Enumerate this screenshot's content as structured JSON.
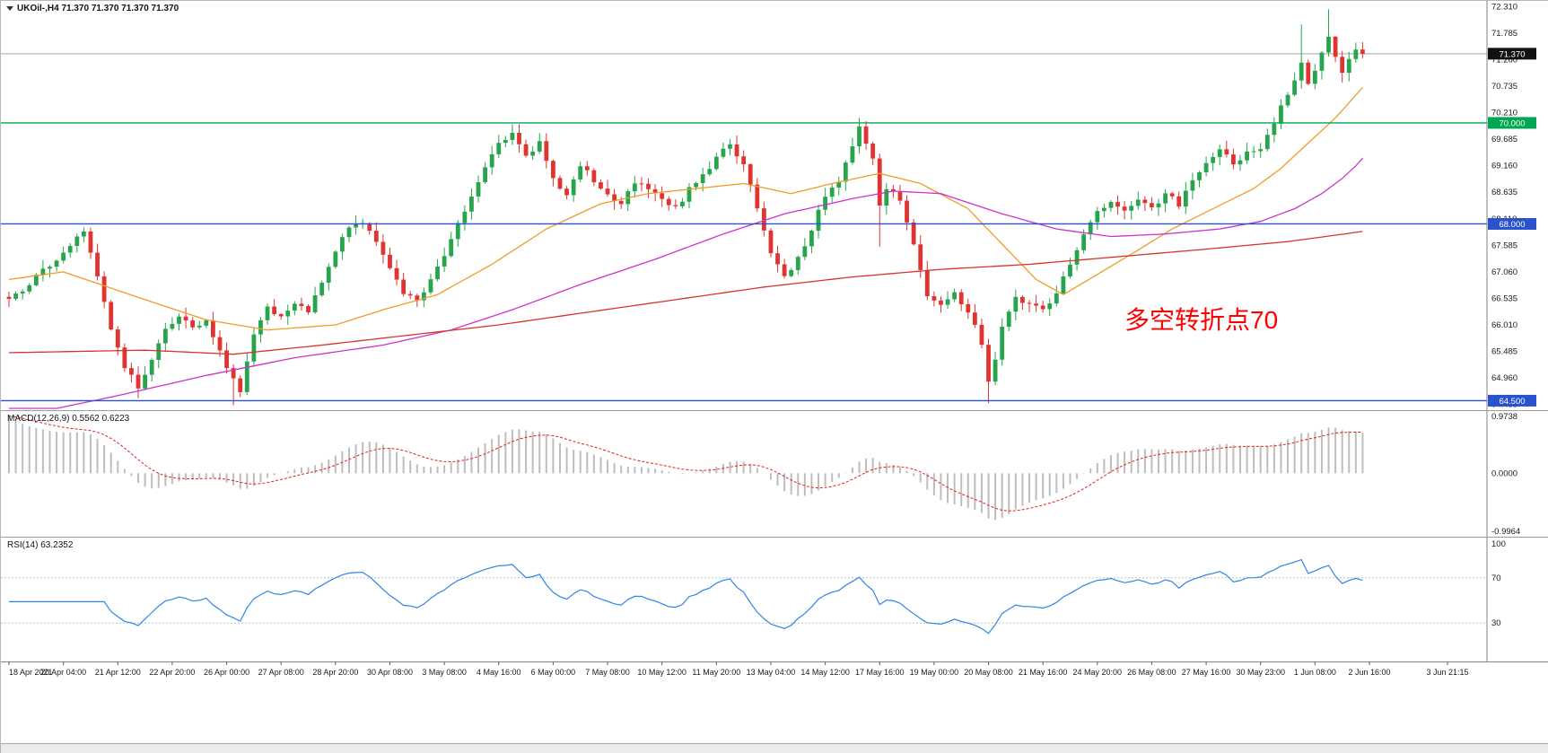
{
  "window": {
    "header": "UKOil-,H4 71.370 71.370 71.370 71.370",
    "annotation": "多空转折点70"
  },
  "chart_data": {
    "type": "candlestick",
    "symbol": "UKOil-",
    "timeframe": "H4",
    "quote": {
      "open": "71.370",
      "high": "71.370",
      "low": "71.370",
      "close": "71.370"
    },
    "price_axis": {
      "visible_min": 64.33,
      "visible_max": 72.38,
      "labels": [
        "72.310",
        "71.785",
        "71.260",
        "70.735",
        "70.210",
        "69.685",
        "69.160",
        "68.635",
        "68.110",
        "67.585",
        "67.060",
        "66.535",
        "66.010",
        "65.485",
        "64.960",
        "64.435"
      ]
    },
    "hlines": [
      {
        "price": 70.0,
        "label": "70.000",
        "color": "#00a651",
        "tag_bg": "#00a651"
      },
      {
        "price": 68.0,
        "label": "68.000",
        "color": "#2952cc",
        "tag_bg": "#2952cc"
      },
      {
        "price": 64.5,
        "label": "64.500",
        "color": "#2952cc",
        "tag_bg": "#2952cc"
      }
    ],
    "current_price": {
      "value": 71.37,
      "label": "71.370",
      "line_color": "#a8a8a8",
      "tag_bg": "#111111"
    },
    "time_labels": [
      "18 Apr 2021",
      "20 Apr 04:00",
      "21 Apr 12:00",
      "22 Apr 20:00",
      "26 Apr 00:00",
      "27 Apr 08:00",
      "28 Apr 20:00",
      "30 Apr 08:00",
      "3 May 08:00",
      "4 May 16:00",
      "6 May 00:00",
      "7 May 08:00",
      "10 May 12:00",
      "11 May 20:00",
      "13 May 04:00",
      "14 May 12:00",
      "17 May 16:00",
      "19 May 00:00",
      "20 May 08:00",
      "21 May 16:00",
      "24 May 20:00",
      "26 May 08:00",
      "27 May 16:00",
      "30 May 23:00",
      "1 Jun 08:00",
      "2 Jun 16:00",
      "3 Jun 21:15"
    ],
    "candles": {
      "count": 200,
      "up_color": "#26a54c",
      "down_color": "#df3430",
      "close_anchors": [
        [
          0,
          66.5
        ],
        [
          3,
          66.8
        ],
        [
          6,
          67.2
        ],
        [
          9,
          67.6
        ],
        [
          11,
          67.8
        ],
        [
          13,
          67.0
        ],
        [
          15,
          65.9
        ],
        [
          17,
          65.2
        ],
        [
          19,
          64.75
        ],
        [
          21,
          65.3
        ],
        [
          23,
          65.9
        ],
        [
          25,
          66.15
        ],
        [
          27,
          65.9
        ],
        [
          29,
          66.1
        ],
        [
          31,
          65.5
        ],
        [
          33,
          64.9
        ],
        [
          34,
          64.65
        ],
        [
          36,
          65.8
        ],
        [
          38,
          66.35
        ],
        [
          40,
          66.2
        ],
        [
          42,
          66.45
        ],
        [
          44,
          66.3
        ],
        [
          46,
          66.9
        ],
        [
          48,
          67.5
        ],
        [
          50,
          67.9
        ],
        [
          52,
          68.05
        ],
        [
          54,
          67.6
        ],
        [
          56,
          67.1
        ],
        [
          58,
          66.6
        ],
        [
          60,
          66.45
        ],
        [
          62,
          66.9
        ],
        [
          64,
          67.4
        ],
        [
          66,
          68.0
        ],
        [
          68,
          68.6
        ],
        [
          70,
          69.1
        ],
        [
          72,
          69.55
        ],
        [
          74,
          69.85
        ],
        [
          76,
          69.3
        ],
        [
          78,
          69.65
        ],
        [
          80,
          68.9
        ],
        [
          82,
          68.55
        ],
        [
          84,
          69.15
        ],
        [
          86,
          68.85
        ],
        [
          88,
          68.6
        ],
        [
          90,
          68.35
        ],
        [
          92,
          68.85
        ],
        [
          94,
          68.65
        ],
        [
          96,
          68.5
        ],
        [
          98,
          68.3
        ],
        [
          100,
          68.7
        ],
        [
          102,
          69.0
        ],
        [
          104,
          69.3
        ],
        [
          106,
          69.6
        ],
        [
          108,
          69.2
        ],
        [
          110,
          68.3
        ],
        [
          112,
          67.4
        ],
        [
          114,
          66.95
        ],
        [
          116,
          67.3
        ],
        [
          118,
          67.9
        ],
        [
          120,
          68.6
        ],
        [
          122,
          68.9
        ],
        [
          124,
          69.5
        ],
        [
          125,
          69.9
        ],
        [
          127,
          69.3
        ],
        [
          128,
          68.4
        ],
        [
          129,
          68.7
        ],
        [
          131,
          68.5
        ],
        [
          133,
          67.6
        ],
        [
          135,
          66.6
        ],
        [
          137,
          66.4
        ],
        [
          139,
          66.6
        ],
        [
          141,
          66.3
        ],
        [
          143,
          65.6
        ],
        [
          144,
          64.9
        ],
        [
          145,
          65.3
        ],
        [
          146,
          65.9
        ],
        [
          148,
          66.5
        ],
        [
          150,
          66.4
        ],
        [
          152,
          66.3
        ],
        [
          154,
          66.6
        ],
        [
          156,
          67.2
        ],
        [
          158,
          67.8
        ],
        [
          160,
          68.2
        ],
        [
          162,
          68.4
        ],
        [
          164,
          68.2
        ],
        [
          166,
          68.5
        ],
        [
          168,
          68.3
        ],
        [
          170,
          68.6
        ],
        [
          172,
          68.4
        ],
        [
          174,
          68.8
        ],
        [
          176,
          69.2
        ],
        [
          178,
          69.5
        ],
        [
          180,
          69.2
        ],
        [
          182,
          69.4
        ],
        [
          184,
          69.5
        ],
        [
          186,
          70.0
        ],
        [
          188,
          70.6
        ],
        [
          190,
          71.2
        ],
        [
          191,
          70.8
        ],
        [
          192,
          71.0
        ],
        [
          194,
          71.7
        ],
        [
          195,
          71.3
        ],
        [
          196,
          70.95
        ],
        [
          197,
          71.2
        ],
        [
          198,
          71.5
        ],
        [
          199,
          71.37
        ]
      ],
      "wick_extremes": [
        {
          "i": 19,
          "low": 64.55
        },
        {
          "i": 33,
          "low": 64.41
        },
        {
          "i": 74,
          "high": 69.97
        },
        {
          "i": 125,
          "high": 70.1
        },
        {
          "i": 128,
          "low": 67.55
        },
        {
          "i": 144,
          "low": 64.45
        },
        {
          "i": 190,
          "high": 71.95
        },
        {
          "i": 194,
          "high": 72.25
        },
        {
          "i": 196,
          "low": 70.8
        }
      ]
    },
    "moving_averages": [
      {
        "name": "ma-fast-orange",
        "color": "#ef9d28",
        "anchors": [
          [
            0,
            66.9
          ],
          [
            8,
            67.05
          ],
          [
            20,
            66.5
          ],
          [
            29,
            66.1
          ],
          [
            38,
            65.9
          ],
          [
            48,
            66.0
          ],
          [
            55,
            66.3
          ],
          [
            63,
            66.6
          ],
          [
            71,
            67.2
          ],
          [
            79,
            67.9
          ],
          [
            87,
            68.4
          ],
          [
            94,
            68.6
          ],
          [
            101,
            68.7
          ],
          [
            108,
            68.8
          ],
          [
            115,
            68.6
          ],
          [
            121,
            68.8
          ],
          [
            128,
            69.0
          ],
          [
            134,
            68.8
          ],
          [
            141,
            68.3
          ],
          [
            146,
            67.6
          ],
          [
            151,
            66.9
          ],
          [
            155,
            66.6
          ],
          [
            160,
            67.0
          ],
          [
            165,
            67.4
          ],
          [
            171,
            67.9
          ],
          [
            177,
            68.3
          ],
          [
            183,
            68.7
          ],
          [
            187,
            69.1
          ],
          [
            191,
            69.6
          ],
          [
            195,
            70.1
          ],
          [
            198,
            70.55
          ],
          [
            199,
            70.7
          ]
        ]
      },
      {
        "name": "ma-mid-magenta",
        "color": "#cc33cc",
        "anchors": [
          [
            0,
            64.15
          ],
          [
            16,
            64.6
          ],
          [
            29,
            65.0
          ],
          [
            42,
            65.35
          ],
          [
            55,
            65.6
          ],
          [
            65,
            65.9
          ],
          [
            74,
            66.3
          ],
          [
            84,
            66.8
          ],
          [
            95,
            67.3
          ],
          [
            105,
            67.8
          ],
          [
            114,
            68.2
          ],
          [
            124,
            68.5
          ],
          [
            130,
            68.65
          ],
          [
            137,
            68.6
          ],
          [
            146,
            68.2
          ],
          [
            154,
            67.9
          ],
          [
            162,
            67.75
          ],
          [
            170,
            67.8
          ],
          [
            178,
            67.9
          ],
          [
            184,
            68.05
          ],
          [
            189,
            68.3
          ],
          [
            193,
            68.6
          ],
          [
            196,
            68.9
          ],
          [
            198,
            69.15
          ],
          [
            199,
            69.3
          ]
        ]
      },
      {
        "name": "ma-slow-red",
        "color": "#d6352c",
        "anchors": [
          [
            0,
            65.45
          ],
          [
            20,
            65.5
          ],
          [
            33,
            65.42
          ],
          [
            46,
            65.6
          ],
          [
            59,
            65.8
          ],
          [
            72,
            66.0
          ],
          [
            85,
            66.25
          ],
          [
            98,
            66.5
          ],
          [
            111,
            66.75
          ],
          [
            124,
            66.95
          ],
          [
            137,
            67.1
          ],
          [
            150,
            67.2
          ],
          [
            163,
            67.35
          ],
          [
            176,
            67.5
          ],
          [
            188,
            67.65
          ],
          [
            199,
            67.85
          ]
        ]
      }
    ],
    "indicators": {
      "macd": {
        "label": "MACD(12,26,9) 0.5562 0.6223",
        "params": [
          12,
          26,
          9
        ],
        "current_values": [
          "0.5562",
          "0.6223"
        ],
        "axis": {
          "max": 0.9738,
          "min": -0.9964
        },
        "axis_labels": [
          {
            "t": "0.9738",
            "v": 0.9738
          },
          {
            "t": "0.0000",
            "v": 0
          },
          {
            "t": "-0.9964",
            "v": -0.9964
          }
        ]
      },
      "rsi": {
        "label": "RSI(14) 63.2352",
        "period": 14,
        "value": 63.2352,
        "levels": [
          70,
          30
        ],
        "axis_labels": [
          {
            "t": "100",
            "v": 100
          },
          {
            "t": "70",
            "v": 70
          },
          {
            "t": "30",
            "v": 30
          }
        ]
      }
    },
    "colors": {
      "macd_hist": "#bdbdbd",
      "macd_signal": "#e02020",
      "rsi_line": "#2e86e8",
      "levels_dash": "#bfbfbf",
      "axis_text": "#1a1a1a"
    }
  }
}
